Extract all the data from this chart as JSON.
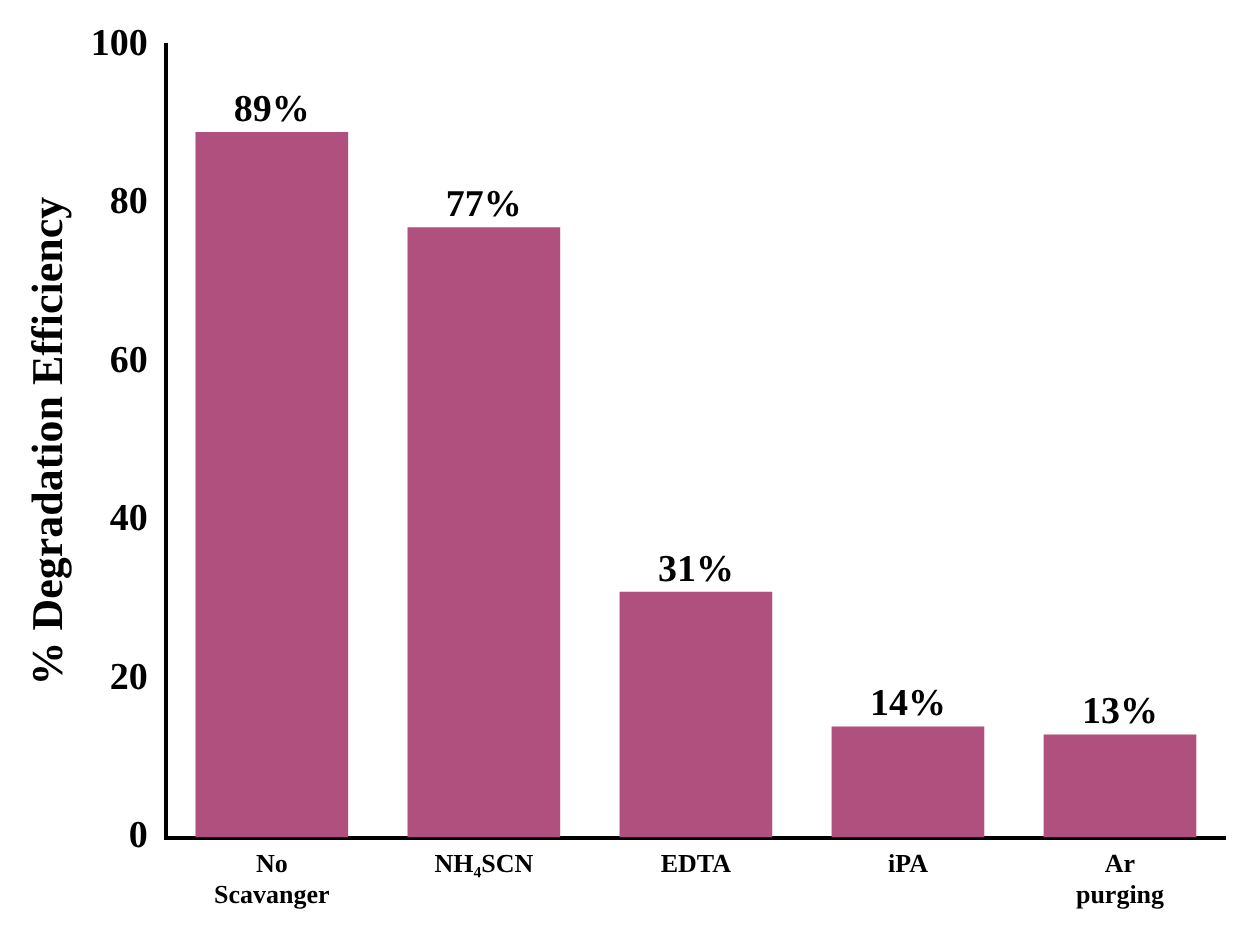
{
  "chart_data": {
    "type": "bar",
    "ylabel": "% Degradation Efficiency",
    "categories": [
      "No Scavanger",
      "NH₄SCN",
      "EDTA",
      "iPA",
      "Ar purging"
    ],
    "values": [
      89,
      77,
      31,
      14,
      13
    ],
    "value_labels": [
      "89%",
      "77%",
      "31%",
      "14%",
      "13%"
    ],
    "color": "#b0507f",
    "ylim": [
      0,
      100
    ],
    "yticks": [
      0,
      20,
      40,
      60,
      80,
      100
    ],
    "grid": false,
    "legend": false
  }
}
